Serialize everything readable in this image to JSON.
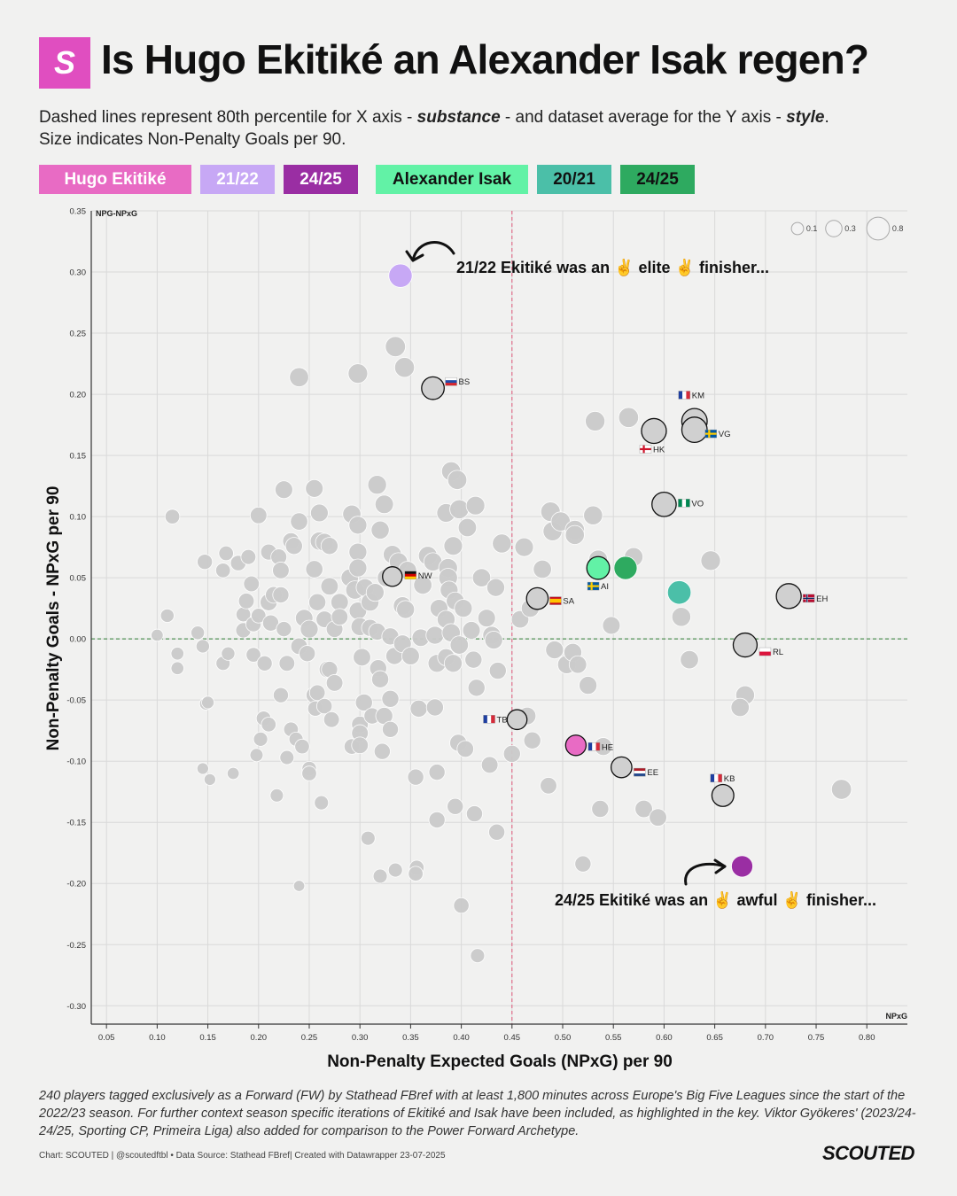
{
  "logo": {
    "letter": "S"
  },
  "header": {
    "title": "Is Hugo Ekitiké an Alexander Isak regen?",
    "subtitle_part1": "Dashed lines represent 80th percentile for X axis - ",
    "subtitle_em1": "substance",
    "subtitle_part2": " - and dataset average for the Y axis - ",
    "subtitle_em2": "style",
    "subtitle_part3": ".",
    "subtitle_line2": "Size indicates Non-Penalty Goals per 90."
  },
  "legend": [
    {
      "label": "Hugo Ekitiké",
      "color": "#e86bc4"
    },
    {
      "label": "21/22",
      "color": "#c7a8f5"
    },
    {
      "label": "24/25",
      "color": "#9a2ea3"
    },
    {
      "label": "Alexander Isak",
      "color": "#62f2a6"
    },
    {
      "label": "20/21",
      "color": "#4bbfa8"
    },
    {
      "label": "24/25",
      "color": "#2eaa60"
    }
  ],
  "chart_data": {
    "type": "scatter",
    "xlabel": "Non-Penalty Expected Goals (NPxG) per 90",
    "ylabel": "Non-Penalty Goals - NPxG per 90",
    "x_axis_corner_label": "NPxG",
    "y_axis_corner_label": "NPG-NPxG",
    "xlim": [
      0.035,
      0.84
    ],
    "ylim": [
      -0.315,
      0.35
    ],
    "x_ticks": [
      "0.05",
      "0.10",
      "0.15",
      "0.20",
      "0.25",
      "0.30",
      "0.35",
      "0.40",
      "0.45",
      "0.50",
      "0.55",
      "0.60",
      "0.65",
      "0.70",
      "0.75",
      "0.80"
    ],
    "y_ticks": [
      "0.35",
      "0.30",
      "0.25",
      "0.20",
      "0.15",
      "0.10",
      "0.05",
      "0.00",
      "-0.05",
      "-0.10",
      "-0.15",
      "-0.20",
      "-0.25",
      "-0.30"
    ],
    "x_reference": 0.45,
    "y_reference": 0.0,
    "size_legend": [
      "0.1",
      "0.3",
      "0.8"
    ],
    "highlights": [
      {
        "name": "Ekitiké 21/22",
        "x": 0.34,
        "y": 0.297,
        "npg": 0.64,
        "color": "#c7a8f5"
      },
      {
        "name": "Ekitiké 24/25",
        "x": 0.513,
        "y": -0.087,
        "npg": 0.43,
        "color": "#e86bc4"
      },
      {
        "name": "Ekitiké 24/25 (late)",
        "x": 0.677,
        "y": -0.186,
        "npg": 0.49,
        "color": "#9a2ea3"
      },
      {
        "name": "Isak 20/21",
        "x": 0.535,
        "y": 0.058,
        "npg": 0.59,
        "color": "#62f2a6"
      },
      {
        "name": "Isak 24/25",
        "x": 0.562,
        "y": 0.058,
        "npg": 0.62,
        "color": "#2eaa60"
      },
      {
        "name": "Isak 20/21 (b)",
        "x": 0.615,
        "y": 0.038,
        "npg": 0.65,
        "color": "#4bbfa8"
      }
    ],
    "labeled": [
      {
        "label": "BS",
        "flag": "si",
        "x": 0.372,
        "y": 0.205,
        "npg": 0.58
      },
      {
        "label": "KM",
        "flag": "fr",
        "x": 0.63,
        "y": 0.178,
        "npg": 0.81
      },
      {
        "label": "VG",
        "flag": "se",
        "x": 0.63,
        "y": 0.171,
        "npg": 0.8
      },
      {
        "label": "HK",
        "flag": "en",
        "x": 0.59,
        "y": 0.17,
        "npg": 0.76
      },
      {
        "label": "VO",
        "flag": "ng",
        "x": 0.6,
        "y": 0.11,
        "npg": 0.71
      },
      {
        "label": "NW",
        "flag": "de",
        "x": 0.332,
        "y": 0.051,
        "npg": 0.38
      },
      {
        "label": "SA",
        "flag": "es",
        "x": 0.475,
        "y": 0.033,
        "npg": 0.51
      },
      {
        "label": "AI",
        "flag": "se",
        "x": 0.535,
        "y": 0.058,
        "npg": 0.59
      },
      {
        "label": "EH",
        "flag": "no",
        "x": 0.723,
        "y": 0.035,
        "npg": 0.76
      },
      {
        "label": "RL",
        "flag": "pl",
        "x": 0.68,
        "y": -0.005,
        "npg": 0.68
      },
      {
        "label": "TB",
        "flag": "fr",
        "x": 0.455,
        "y": -0.066,
        "npg": 0.39
      },
      {
        "label": "HE",
        "flag": "fr",
        "x": 0.513,
        "y": -0.087,
        "npg": 0.43
      },
      {
        "label": "EE",
        "flag": "nl",
        "x": 0.558,
        "y": -0.105,
        "npg": 0.45
      },
      {
        "label": "KB",
        "flag": "fr",
        "x": 0.658,
        "y": -0.128,
        "npg": 0.53
      }
    ],
    "others": [
      [
        0.1,
        0.003,
        0.06
      ],
      [
        0.11,
        0.019,
        0.1
      ],
      [
        0.115,
        0.1,
        0.14
      ],
      [
        0.12,
        -0.012,
        0.08
      ],
      [
        0.12,
        -0.024,
        0.08
      ],
      [
        0.14,
        0.005,
        0.1
      ],
      [
        0.145,
        -0.006,
        0.1
      ],
      [
        0.147,
        0.063,
        0.16
      ],
      [
        0.148,
        -0.053,
        0.07
      ],
      [
        0.15,
        -0.052,
        0.07
      ],
      [
        0.145,
        -0.106,
        0.05
      ],
      [
        0.152,
        -0.115,
        0.05
      ],
      [
        0.165,
        0.056,
        0.14
      ],
      [
        0.165,
        -0.02,
        0.12
      ],
      [
        0.168,
        0.07,
        0.14
      ],
      [
        0.17,
        -0.012,
        0.1
      ],
      [
        0.175,
        -0.11,
        0.06
      ],
      [
        0.18,
        0.062,
        0.17
      ],
      [
        0.185,
        0.007,
        0.16
      ],
      [
        0.185,
        0.02,
        0.14
      ],
      [
        0.188,
        0.031,
        0.18
      ],
      [
        0.19,
        0.067,
        0.15
      ],
      [
        0.193,
        0.045,
        0.18
      ],
      [
        0.195,
        0.012,
        0.16
      ],
      [
        0.195,
        -0.013,
        0.14
      ],
      [
        0.198,
        -0.095,
        0.09
      ],
      [
        0.2,
        0.101,
        0.22
      ],
      [
        0.2,
        0.019,
        0.14
      ],
      [
        0.202,
        -0.082,
        0.12
      ],
      [
        0.205,
        -0.065,
        0.14
      ],
      [
        0.206,
        -0.02,
        0.16
      ],
      [
        0.21,
        0.071,
        0.19
      ],
      [
        0.21,
        0.03,
        0.24
      ],
      [
        0.21,
        -0.07,
        0.14
      ],
      [
        0.212,
        0.013,
        0.2
      ],
      [
        0.215,
        0.036,
        0.22
      ],
      [
        0.218,
        -0.128,
        0.09
      ],
      [
        0.22,
        0.067,
        0.19
      ],
      [
        0.222,
        -0.046,
        0.16
      ],
      [
        0.222,
        0.056,
        0.22
      ],
      [
        0.222,
        0.036,
        0.2
      ],
      [
        0.225,
        0.008,
        0.16
      ],
      [
        0.225,
        0.122,
        0.27
      ],
      [
        0.228,
        -0.097,
        0.12
      ],
      [
        0.228,
        -0.02,
        0.18
      ],
      [
        0.232,
        0.08,
        0.22
      ],
      [
        0.232,
        -0.074,
        0.14
      ],
      [
        0.235,
        0.076,
        0.24
      ],
      [
        0.237,
        -0.082,
        0.12
      ],
      [
        0.24,
        0.214,
        0.35
      ],
      [
        0.24,
        0.096,
        0.25
      ],
      [
        0.24,
        -0.006,
        0.22
      ],
      [
        0.24,
        -0.202,
        0.04
      ],
      [
        0.243,
        -0.088,
        0.14
      ],
      [
        0.245,
        0.017,
        0.26
      ],
      [
        0.248,
        -0.012,
        0.2
      ],
      [
        0.25,
        0.008,
        0.28
      ],
      [
        0.25,
        -0.106,
        0.13
      ],
      [
        0.25,
        -0.11,
        0.14
      ],
      [
        0.255,
        0.123,
        0.27
      ],
      [
        0.255,
        0.057,
        0.25
      ],
      [
        0.255,
        -0.046,
        0.21
      ],
      [
        0.256,
        -0.057,
        0.16
      ],
      [
        0.258,
        0.03,
        0.24
      ],
      [
        0.258,
        -0.044,
        0.18
      ],
      [
        0.26,
        0.103,
        0.27
      ],
      [
        0.26,
        0.08,
        0.3
      ],
      [
        0.262,
        -0.134,
        0.12
      ],
      [
        0.265,
        0.079,
        0.28
      ],
      [
        0.265,
        0.016,
        0.22
      ],
      [
        0.265,
        -0.055,
        0.17
      ],
      [
        0.268,
        -0.025,
        0.22
      ],
      [
        0.27,
        0.043,
        0.26
      ],
      [
        0.27,
        -0.025,
        0.2
      ],
      [
        0.27,
        0.076,
        0.24
      ],
      [
        0.272,
        -0.066,
        0.18
      ],
      [
        0.275,
        0.008,
        0.22
      ],
      [
        0.275,
        -0.036,
        0.22
      ],
      [
        0.28,
        0.03,
        0.26
      ],
      [
        0.28,
        0.018,
        0.22
      ],
      [
        0.29,
        0.05,
        0.26
      ],
      [
        0.292,
        0.102,
        0.3
      ],
      [
        0.292,
        -0.088,
        0.17
      ],
      [
        0.295,
        0.04,
        0.3
      ],
      [
        0.298,
        0.217,
        0.37
      ],
      [
        0.298,
        0.093,
        0.28
      ],
      [
        0.298,
        0.071,
        0.28
      ],
      [
        0.298,
        0.058,
        0.28
      ],
      [
        0.298,
        0.023,
        0.26
      ],
      [
        0.3,
        -0.07,
        0.22
      ],
      [
        0.3,
        -0.077,
        0.22
      ],
      [
        0.3,
        -0.087,
        0.22
      ],
      [
        0.3,
        0.01,
        0.28
      ],
      [
        0.302,
        -0.015,
        0.26
      ],
      [
        0.304,
        -0.052,
        0.24
      ],
      [
        0.305,
        0.042,
        0.27
      ],
      [
        0.308,
        -0.163,
        0.12
      ],
      [
        0.31,
        0.03,
        0.28
      ],
      [
        0.31,
        0.009,
        0.24
      ],
      [
        0.312,
        -0.063,
        0.2
      ],
      [
        0.315,
        0.038,
        0.28
      ],
      [
        0.317,
        0.126,
        0.33
      ],
      [
        0.317,
        0.006,
        0.24
      ],
      [
        0.318,
        -0.024,
        0.24
      ],
      [
        0.32,
        -0.033,
        0.24
      ],
      [
        0.32,
        0.089,
        0.29
      ],
      [
        0.32,
        -0.194,
        0.12
      ],
      [
        0.322,
        -0.092,
        0.2
      ],
      [
        0.324,
        0.11,
        0.31
      ],
      [
        0.324,
        -0.063,
        0.24
      ],
      [
        0.326,
        0.05,
        0.28
      ],
      [
        0.33,
        0.002,
        0.24
      ],
      [
        0.33,
        -0.074,
        0.2
      ],
      [
        0.33,
        -0.049,
        0.24
      ],
      [
        0.332,
        0.069,
        0.3
      ],
      [
        0.334,
        -0.014,
        0.24
      ],
      [
        0.335,
        0.239,
        0.41
      ],
      [
        0.335,
        -0.189,
        0.12
      ],
      [
        0.338,
        0.063,
        0.3
      ],
      [
        0.342,
        0.027,
        0.3
      ],
      [
        0.342,
        -0.004,
        0.27
      ],
      [
        0.344,
        0.222,
        0.39
      ],
      [
        0.345,
        0.024,
        0.28
      ],
      [
        0.347,
        0.056,
        0.29
      ],
      [
        0.35,
        -0.014,
        0.27
      ],
      [
        0.355,
        -0.113,
        0.2
      ],
      [
        0.356,
        -0.187,
        0.14
      ],
      [
        0.355,
        -0.192,
        0.14
      ],
      [
        0.358,
        -0.057,
        0.24
      ],
      [
        0.36,
        0.001,
        0.26
      ],
      [
        0.362,
        0.044,
        0.3
      ],
      [
        0.367,
        0.068,
        0.33
      ],
      [
        0.372,
        0.063,
        0.3
      ],
      [
        0.374,
        0.003,
        0.28
      ],
      [
        0.374,
        -0.056,
        0.24
      ],
      [
        0.376,
        -0.148,
        0.2
      ],
      [
        0.376,
        -0.02,
        0.28
      ],
      [
        0.376,
        -0.109,
        0.2
      ],
      [
        0.378,
        0.025,
        0.28
      ],
      [
        0.385,
        0.103,
        0.32
      ],
      [
        0.385,
        0.016,
        0.28
      ],
      [
        0.385,
        -0.015,
        0.24
      ],
      [
        0.387,
        0.058,
        0.33
      ],
      [
        0.387,
        0.05,
        0.33
      ],
      [
        0.388,
        0.04,
        0.28
      ],
      [
        0.39,
        0.137,
        0.35
      ],
      [
        0.39,
        0.005,
        0.3
      ],
      [
        0.392,
        0.076,
        0.32
      ],
      [
        0.392,
        -0.02,
        0.28
      ],
      [
        0.394,
        -0.137,
        0.2
      ],
      [
        0.394,
        0.031,
        0.28
      ],
      [
        0.396,
        0.13,
        0.35
      ],
      [
        0.397,
        -0.085,
        0.24
      ],
      [
        0.398,
        0.106,
        0.34
      ],
      [
        0.398,
        -0.005,
        0.3
      ],
      [
        0.4,
        -0.218,
        0.17
      ],
      [
        0.402,
        0.025,
        0.28
      ],
      [
        0.404,
        -0.09,
        0.22
      ],
      [
        0.406,
        0.091,
        0.3
      ],
      [
        0.41,
        0.007,
        0.27
      ],
      [
        0.412,
        -0.017,
        0.24
      ],
      [
        0.413,
        -0.143,
        0.2
      ],
      [
        0.414,
        0.109,
        0.32
      ],
      [
        0.415,
        -0.04,
        0.24
      ],
      [
        0.416,
        -0.259,
        0.12
      ],
      [
        0.42,
        0.05,
        0.3
      ],
      [
        0.425,
        0.017,
        0.27
      ],
      [
        0.428,
        -0.103,
        0.22
      ],
      [
        0.43,
        0.003,
        0.28
      ],
      [
        0.432,
        -0.001,
        0.28
      ],
      [
        0.434,
        0.042,
        0.28
      ],
      [
        0.435,
        -0.158,
        0.2
      ],
      [
        0.436,
        -0.026,
        0.24
      ],
      [
        0.44,
        0.078,
        0.34
      ],
      [
        0.45,
        -0.094,
        0.24
      ],
      [
        0.458,
        0.016,
        0.26
      ],
      [
        0.462,
        0.075,
        0.32
      ],
      [
        0.465,
        -0.063,
        0.26
      ],
      [
        0.468,
        0.025,
        0.28
      ],
      [
        0.47,
        -0.083,
        0.24
      ],
      [
        0.48,
        0.057,
        0.3
      ],
      [
        0.486,
        -0.12,
        0.22
      ],
      [
        0.488,
        0.104,
        0.37
      ],
      [
        0.49,
        0.088,
        0.34
      ],
      [
        0.492,
        -0.009,
        0.28
      ],
      [
        0.498,
        0.096,
        0.35
      ],
      [
        0.504,
        -0.021,
        0.3
      ],
      [
        0.51,
        -0.011,
        0.28
      ],
      [
        0.512,
        0.089,
        0.36
      ],
      [
        0.512,
        0.085,
        0.34
      ],
      [
        0.515,
        -0.021,
        0.26
      ],
      [
        0.52,
        -0.184,
        0.2
      ],
      [
        0.525,
        -0.038,
        0.28
      ],
      [
        0.53,
        0.101,
        0.34
      ],
      [
        0.532,
        0.178,
        0.38
      ],
      [
        0.535,
        0.065,
        0.32
      ],
      [
        0.537,
        -0.139,
        0.24
      ],
      [
        0.54,
        -0.088,
        0.28
      ],
      [
        0.548,
        0.011,
        0.27
      ],
      [
        0.565,
        0.181,
        0.4
      ],
      [
        0.57,
        0.067,
        0.32
      ],
      [
        0.58,
        -0.139,
        0.26
      ],
      [
        0.594,
        -0.146,
        0.26
      ],
      [
        0.617,
        0.018,
        0.34
      ],
      [
        0.625,
        -0.017,
        0.3
      ],
      [
        0.646,
        0.064,
        0.38
      ],
      [
        0.68,
        -0.046,
        0.33
      ],
      [
        0.675,
        -0.056,
        0.3
      ],
      [
        0.775,
        -0.123,
        0.4
      ]
    ],
    "annotations": [
      {
        "text": "21/22 Ekitiké was an ✌ elite ✌ finisher..."
      },
      {
        "text": "24/25 Ekitiké was an ✌ awful ✌ finisher..."
      }
    ]
  },
  "footnote": "240 players tagged exclusively as a Forward (FW) by Stathead FBref with at least 1,800 minutes across Europe's Big Five Leagues since the start of the 2022/23 season. For further context season specific iterations of Ekitiké and Isak have been included, as highlighted in the key. Viktor Gyökeres' (2023/24-24/25, Sporting CP, Primeira Liga) also added for comparison to the Power Forward Archetype.",
  "credit": "Chart: SCOUTED | @scoutedftbl • Data Source: Stathead FBref| Created with Datawrapper 23-07-2025",
  "brand": "SCOUTED"
}
